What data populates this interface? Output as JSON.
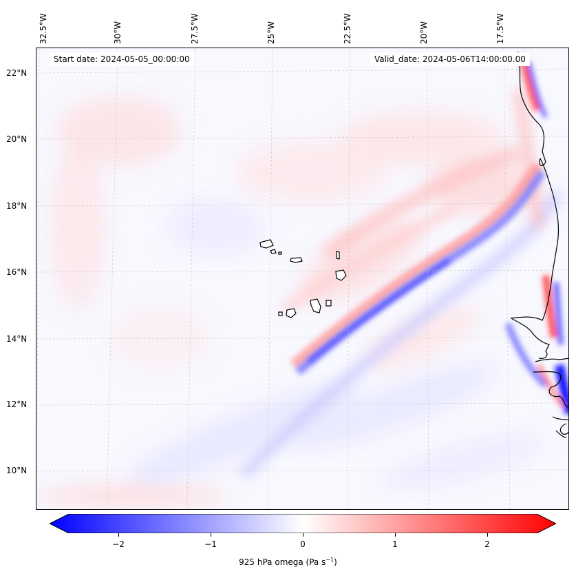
{
  "header": {
    "start_date": "Start date: 2024-05-05_00:00:00",
    "valid_date": "Valid_date: 2024-05-06T14:00:00.00"
  },
  "axes": {
    "lon_labels": [
      "32.5°W",
      "30°W",
      "27.5°W",
      "25°W",
      "22.5°W",
      "20°W",
      "17.5°W"
    ],
    "lat_labels": [
      "22°N",
      "20°N",
      "18°N",
      "16°N",
      "14°N",
      "12°N",
      "10°N"
    ]
  },
  "colorbar": {
    "label": "925 hPa omega (Pa s",
    "label_sup": "−1",
    "label_end": ")",
    "ticks": [
      "−2",
      "−1",
      "0",
      "1",
      "2"
    ],
    "range": [
      -2.6,
      2.6
    ],
    "colors": {
      "negative": "#0000ff",
      "zero": "#ffffff",
      "positive": "#ff0000"
    }
  },
  "map": {
    "region": "Eastern tropical Atlantic / Cabo Verde / West Africa coast",
    "field": "925 hPa omega",
    "extent_lon": [
      -33.0,
      -15.5
    ],
    "extent_lat": [
      9.0,
      22.8
    ]
  }
}
